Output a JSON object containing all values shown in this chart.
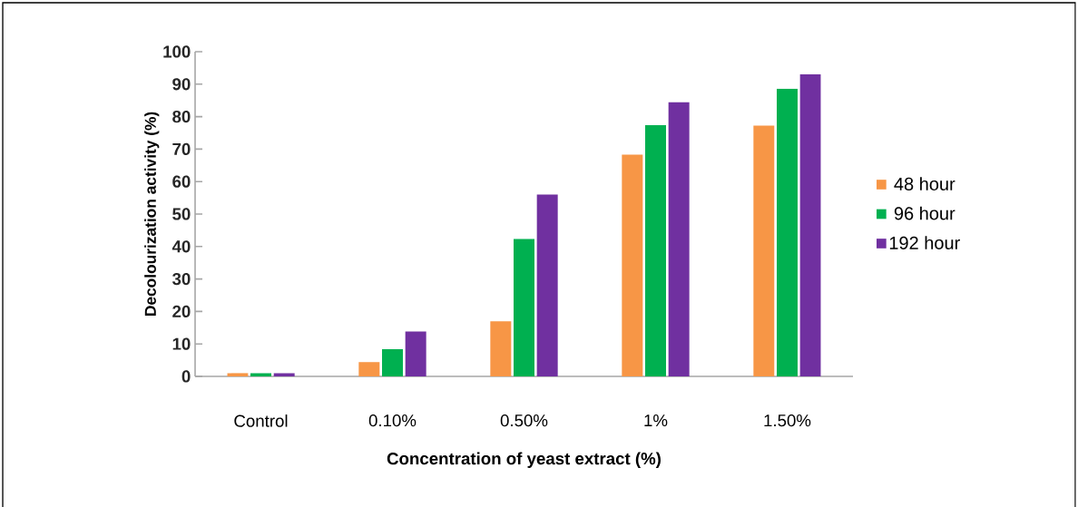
{
  "chart_data": {
    "type": "bar",
    "xlabel": "Concentration of yeast extract (%)",
    "ylabel": "Decolourization activity (%)",
    "categories": [
      "Control",
      "0.10%",
      "0.50%",
      "1%",
      "1.50%"
    ],
    "series": [
      {
        "name": "48 hour",
        "color": "#f79646",
        "values": [
          1,
          4.4,
          17,
          68.3,
          77.2
        ]
      },
      {
        "name": "96 hour",
        "color": "#00b050",
        "values": [
          1,
          8.4,
          42.3,
          77.4,
          88.6
        ]
      },
      {
        "name": "192 hour",
        "color": "#7030a0",
        "values": [
          1,
          13.8,
          56,
          84.4,
          93.1
        ]
      }
    ],
    "ylim": [
      0,
      100
    ],
    "yticks": [
      0,
      10,
      20,
      30,
      40,
      50,
      60,
      70,
      80,
      90,
      100
    ],
    "legend": "right",
    "grid": false
  }
}
